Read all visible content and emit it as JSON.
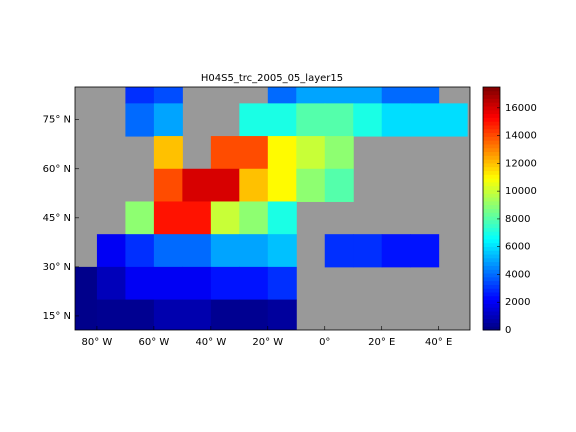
{
  "chart_data": {
    "type": "heatmap",
    "title": "H04S5_trc_2005_05_layer15",
    "x": [
      -90,
      -80,
      -70,
      -60,
      -50,
      -40,
      -30,
      -20,
      -10,
      0,
      10,
      20,
      30,
      40
    ],
    "y": [
      80,
      70,
      60,
      50,
      40,
      30,
      20,
      10
    ],
    "values": [
      [
        null,
        null,
        3000,
        3500,
        null,
        null,
        null,
        4000,
        5000,
        5000,
        5000,
        4000,
        4000,
        null
      ],
      [
        null,
        null,
        4000,
        5000,
        null,
        null,
        7000,
        7000,
        8000,
        8000,
        7000,
        6000,
        6000,
        6000
      ],
      [
        null,
        null,
        null,
        12000,
        null,
        14000,
        14000,
        11000,
        10000,
        9000,
        null,
        null,
        null,
        null
      ],
      [
        null,
        null,
        null,
        14000,
        16000,
        16000,
        12000,
        11000,
        9000,
        8000,
        null,
        null,
        null,
        null
      ],
      [
        null,
        null,
        9000,
        15000,
        15000,
        10000,
        9000,
        7000,
        null,
        null,
        null,
        null,
        null,
        null
      ],
      [
        null,
        2000,
        3000,
        4000,
        4000,
        5000,
        5000,
        5500,
        null,
        3000,
        3000,
        2500,
        2500,
        null
      ],
      [
        200,
        1000,
        2000,
        2000,
        2000,
        2500,
        2500,
        3000,
        null,
        null,
        null,
        null,
        null,
        null
      ],
      [
        200,
        300,
        300,
        800,
        800,
        300,
        300,
        500,
        null,
        null,
        null,
        null,
        null,
        null
      ]
    ],
    "xlim": [
      -87.7,
      51
    ],
    "ylim": [
      10.7,
      85
    ],
    "xticks": [
      {
        "value": -80,
        "label": "80° W"
      },
      {
        "value": -60,
        "label": "60° W"
      },
      {
        "value": -40,
        "label": "40° W"
      },
      {
        "value": -20,
        "label": "20° W"
      },
      {
        "value": 0,
        "label": "0°"
      },
      {
        "value": 20,
        "label": "20° E"
      },
      {
        "value": 40,
        "label": "40° E"
      }
    ],
    "yticks": [
      {
        "value": 15,
        "label": "15° N"
      },
      {
        "value": 30,
        "label": "30° N"
      },
      {
        "value": 45,
        "label": "45° N"
      },
      {
        "value": 60,
        "label": "60° N"
      },
      {
        "value": 75,
        "label": "75° N"
      }
    ],
    "land_color": "#999999",
    "clim": [
      0,
      17500
    ],
    "cticks": [
      0,
      2000,
      4000,
      6000,
      8000,
      10000,
      12000,
      14000,
      16000
    ],
    "colormap": "jet"
  }
}
